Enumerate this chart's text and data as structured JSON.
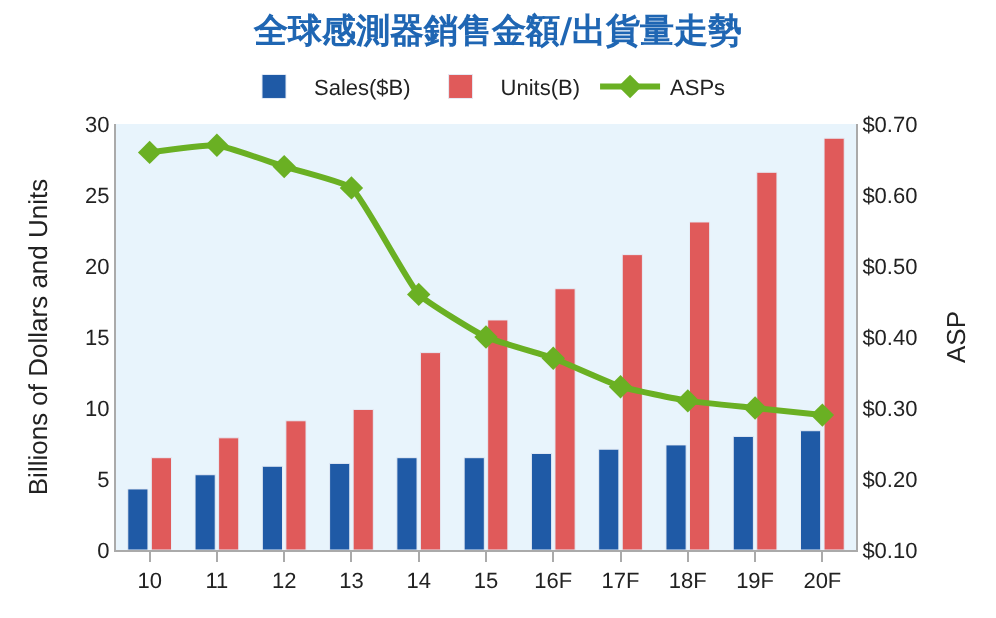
{
  "chart_data": {
    "type": "bar",
    "title": "全球感測器銷售金額/出貨量走勢",
    "ylabel": "Billions of Dollars and Units",
    "y2label": "ASP",
    "categories": [
      "10",
      "11",
      "12",
      "13",
      "14",
      "15",
      "16F",
      "17F",
      "18F",
      "19F",
      "20F"
    ],
    "series": [
      {
        "name": "Sales($B)",
        "color": "#1f5aa6",
        "values": [
          4.3,
          5.3,
          5.9,
          6.1,
          6.5,
          6.5,
          6.8,
          7.1,
          7.4,
          8.0,
          8.4
        ]
      },
      {
        "name": "Units(B)",
        "color": "#e05a5a",
        "values": [
          6.5,
          7.9,
          9.1,
          9.9,
          13.9,
          16.2,
          18.4,
          20.8,
          23.1,
          26.6,
          29.0
        ]
      },
      {
        "name": "ASPs",
        "type": "line",
        "axis": "y2",
        "color": "#6ab023",
        "marker": "diamond",
        "values": [
          0.66,
          0.67,
          0.64,
          0.61,
          0.46,
          0.4,
          0.37,
          0.33,
          0.31,
          0.3,
          0.29
        ]
      }
    ],
    "ylim": [
      0,
      30
    ],
    "yticks": [
      0,
      5,
      10,
      15,
      20,
      25,
      30
    ],
    "y2lim": [
      0.1,
      0.7
    ],
    "y2ticks": [
      {
        "value": 0.1,
        "label": "$0.10"
      },
      {
        "value": 0.2,
        "label": "$0.20"
      },
      {
        "value": 0.3,
        "label": "$0.30"
      },
      {
        "value": 0.4,
        "label": "$0.40"
      },
      {
        "value": 0.5,
        "label": "$0.50"
      },
      {
        "value": 0.6,
        "label": "$0.60"
      },
      {
        "value": 0.7,
        "label": "$0.70"
      }
    ],
    "grid": false,
    "legend": "top"
  }
}
